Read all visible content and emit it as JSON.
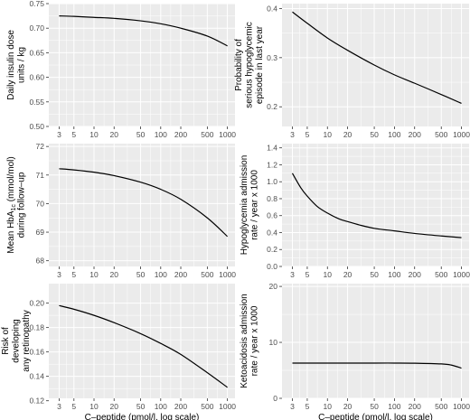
{
  "figure": {
    "xlabel": "C–peptide (pmol/l, log scale)",
    "xticks": [
      3,
      5,
      10,
      20,
      50,
      100,
      200,
      500,
      1000
    ],
    "xtick_labels": [
      "3",
      "5",
      "10",
      "20",
      "50",
      "100",
      "200",
      "500",
      "1000"
    ]
  },
  "chart_data": [
    {
      "type": "line",
      "ylabel": [
        "Daily insulin dose",
        "units / kg"
      ],
      "xscale": "log",
      "xlim": [
        2.1,
        1300
      ],
      "ylim": [
        0.5,
        0.75
      ],
      "yticks": [
        0.5,
        0.55,
        0.6,
        0.65,
        0.7,
        0.75
      ],
      "ytick_labels": [
        "0.50",
        "0.55",
        "0.60",
        "0.65",
        "0.70",
        "0.75"
      ],
      "grid": true,
      "series": [
        {
          "x": [
            3,
            5,
            10,
            20,
            50,
            100,
            200,
            500,
            1000
          ],
          "y": [
            0.725,
            0.724,
            0.722,
            0.72,
            0.715,
            0.709,
            0.7,
            0.684,
            0.664
          ]
        }
      ]
    },
    {
      "type": "line",
      "ylabel": [
        "Probability of",
        "serious hypoglycemic",
        "episode in last year"
      ],
      "xscale": "log",
      "xlim": [
        2.1,
        1300
      ],
      "ylim": [
        0.16,
        0.41
      ],
      "yticks": [
        0.2,
        0.3,
        0.4
      ],
      "ytick_labels": [
        "0.2",
        "0.3",
        "0.4"
      ],
      "grid": true,
      "series": [
        {
          "x": [
            3,
            5,
            10,
            20,
            50,
            100,
            200,
            500,
            1000
          ],
          "y": [
            0.393,
            0.37,
            0.34,
            0.315,
            0.285,
            0.265,
            0.248,
            0.225,
            0.207
          ]
        }
      ]
    },
    {
      "type": "line",
      "ylabel": [
        "Mean HbA1c (mmol/mol)",
        "during follow–up"
      ],
      "xscale": "log",
      "xlim": [
        2.1,
        1300
      ],
      "ylim": [
        67.8,
        72.1
      ],
      "yticks": [
        68,
        69,
        70,
        71,
        72
      ],
      "ytick_labels": [
        "68",
        "69",
        "70",
        "71",
        "72"
      ],
      "grid": true,
      "series": [
        {
          "x": [
            3,
            5,
            10,
            20,
            50,
            100,
            200,
            500,
            1000
          ],
          "y": [
            71.22,
            71.18,
            71.1,
            70.98,
            70.75,
            70.5,
            70.15,
            69.5,
            68.85
          ]
        }
      ]
    },
    {
      "type": "line",
      "ylabel": [
        "Hypoglycemia admission",
        "rate / year x 1000"
      ],
      "xscale": "log",
      "xlim": [
        2.1,
        1300
      ],
      "ylim": [
        0,
        1.45
      ],
      "yticks": [
        0,
        0.2,
        0.4,
        0.6,
        0.8,
        1.0,
        1.2,
        1.4
      ],
      "ytick_labels": [
        "0.0",
        "0.2",
        "0.4",
        "0.6",
        "0.8",
        "1.0",
        "1.2",
        "1.4"
      ],
      "grid": true,
      "series": [
        {
          "x": [
            3,
            4,
            5,
            7,
            10,
            15,
            20,
            30,
            50,
            100,
            200,
            500,
            1000
          ],
          "y": [
            1.1,
            0.93,
            0.83,
            0.71,
            0.63,
            0.56,
            0.53,
            0.49,
            0.45,
            0.42,
            0.39,
            0.36,
            0.34
          ]
        }
      ]
    },
    {
      "type": "line",
      "ylabel": [
        "Risk of",
        "developing",
        "any retinopathy"
      ],
      "xscale": "log",
      "xlim": [
        2.1,
        1300
      ],
      "ylim": [
        0.122,
        0.216
      ],
      "yticks": [
        0.12,
        0.14,
        0.16,
        0.18,
        0.2
      ],
      "ytick_labels": [
        "0.12",
        "0.14",
        "0.16",
        "0.18",
        "0.20"
      ],
      "grid": true,
      "series": [
        {
          "x": [
            3,
            5,
            10,
            20,
            50,
            100,
            200,
            500,
            1000
          ],
          "y": [
            0.198,
            0.195,
            0.19,
            0.184,
            0.175,
            0.167,
            0.158,
            0.143,
            0.131
          ]
        }
      ]
    },
    {
      "type": "line",
      "ylabel": [
        "Ketoacidosis admission",
        "rate / year x 1000"
      ],
      "xscale": "log",
      "xlim": [
        2.1,
        1300
      ],
      "ylim": [
        0,
        20.5
      ],
      "yticks": [
        0,
        10,
        20
      ],
      "ytick_labels": [
        "0",
        "10",
        "20"
      ],
      "grid": true,
      "series": [
        {
          "x": [
            3,
            5,
            10,
            20,
            50,
            100,
            200,
            500,
            700,
            1000
          ],
          "y": [
            6.3,
            6.3,
            6.3,
            6.3,
            6.3,
            6.3,
            6.28,
            6.15,
            5.95,
            5.4
          ]
        }
      ]
    }
  ]
}
